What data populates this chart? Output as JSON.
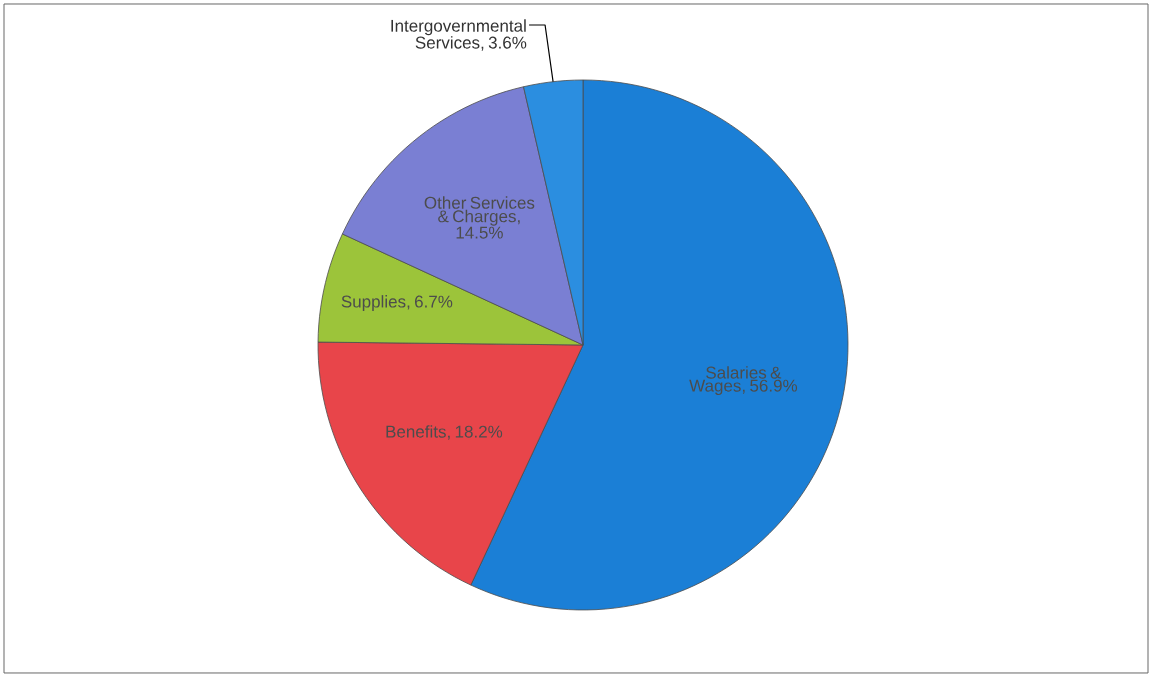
{
  "chart_data": {
    "type": "pie",
    "categories": [
      "Salaries & Wages",
      "Benefits",
      "Supplies",
      "Other Services & Charges",
      "Intergovernmental Services"
    ],
    "values": [
      56.9,
      18.2,
      6.7,
      14.5,
      3.6
    ],
    "value_labels": [
      ", 56.9%",
      ", 18.2%",
      ", 6.7%",
      ", 14.5%",
      ", 3.6%"
    ],
    "colors": [
      "#1b7fd6",
      "#e8454a",
      "#9cc43a",
      "#7a7fd3",
      "#2b8ee0"
    ],
    "data_labels": true,
    "legend": false
  }
}
